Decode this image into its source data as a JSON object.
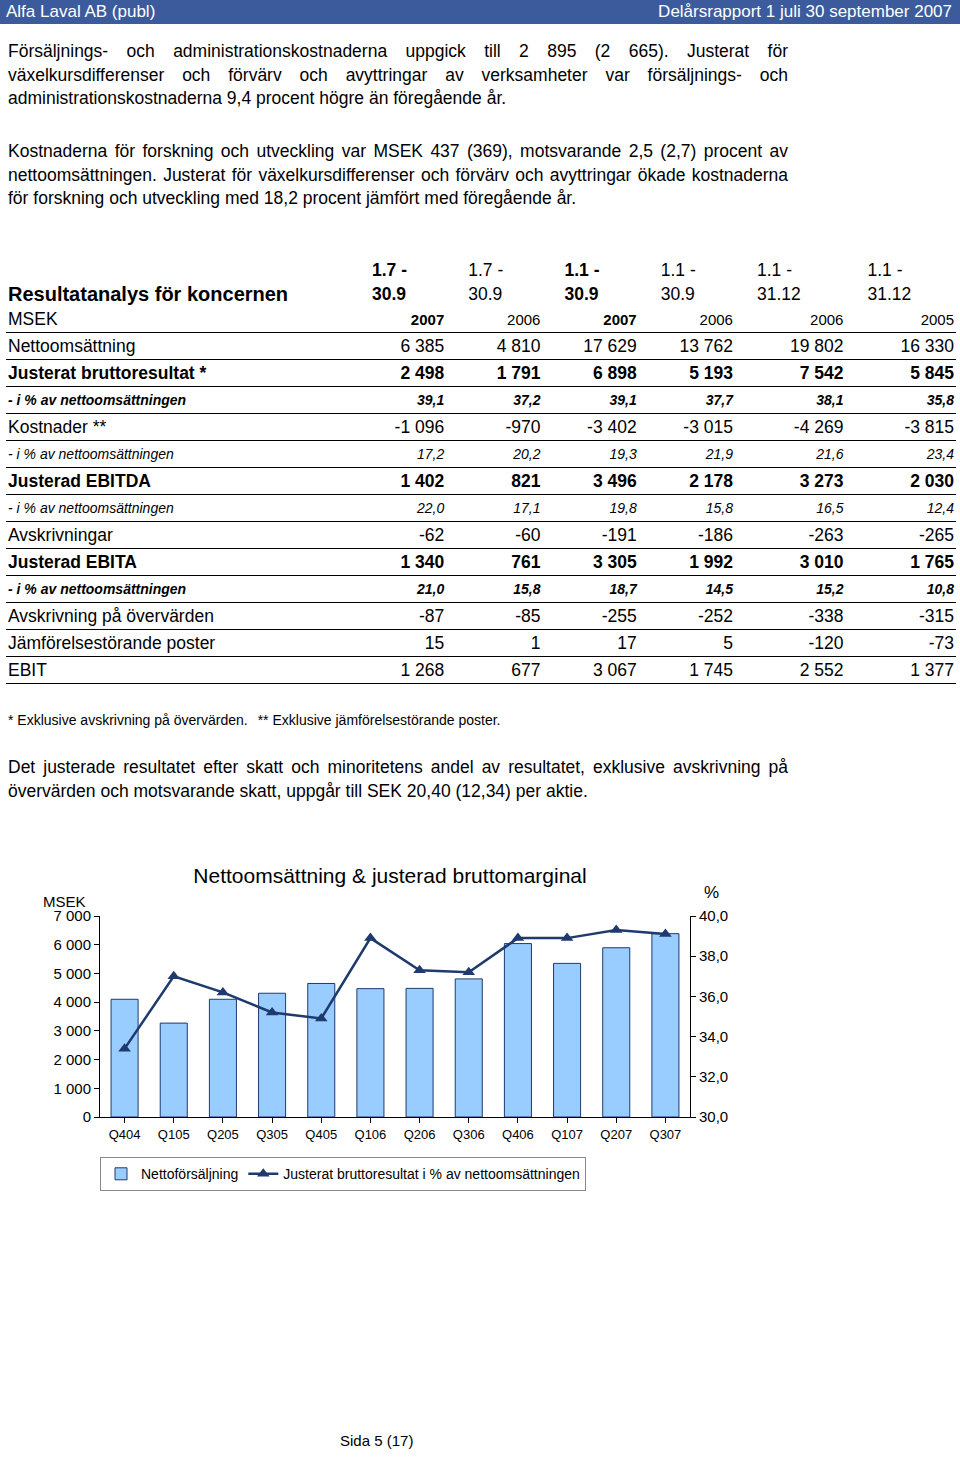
{
  "header": {
    "left": "Alfa Laval AB (publ)",
    "right": "Delårsrapport 1 juli 30 september 2007"
  },
  "paragraphs": [
    "Försäljnings- och administrationskostnaderna uppgick till 2 895 (2 665). Justerat för växelkursdifferenser och förvärv och avyttringar av verksamheter var försäljnings- och administrationskostnaderna 9,4 procent högre än föregående år.",
    "Kostnaderna för forskning och utveckling var MSEK 437 (369), motsvarande 2,5 (2,7) procent av nettoomsättningen. Justerat för växelkursdifferenser och förvärv och avyttringar ökade kostnaderna för forskning och utveckling med 18,2 procent jämfört med föregående år."
  ],
  "table": {
    "title": "Resultatanalys för koncernen",
    "unit": "MSEK",
    "columns": [
      {
        "period": [
          "1.7 -",
          "30.9"
        ],
        "year": "2007"
      },
      {
        "period": [
          "1.7 -",
          "30.9"
        ],
        "year": "2006"
      },
      {
        "period": [
          "1.1 -",
          "30.9"
        ],
        "year": "2007"
      },
      {
        "period": [
          "1.1 -",
          "30.9"
        ],
        "year": "2006"
      },
      {
        "period": [
          "1.1 -",
          "31.12"
        ],
        "year": "2006"
      },
      {
        "period": [
          "1.1 -",
          "31.12"
        ],
        "year": "2005"
      }
    ],
    "rows": [
      {
        "label": "Nettoomsättning",
        "values": [
          "6 385",
          "4 810",
          "17 629",
          "13 762",
          "19 802",
          "16 330"
        ]
      },
      {
        "label": "Justerat bruttoresultat *",
        "values": [
          "2 498",
          "1 791",
          "6 898",
          "5 193",
          "7 542",
          "5 845"
        ]
      },
      {
        "label": "- i % av nettoomsättningen",
        "values": [
          "39,1",
          "37,2",
          "39,1",
          "37,7",
          "38,1",
          "35,8"
        ]
      },
      {
        "label": "Kostnader **",
        "values": [
          "-1 096",
          "-970",
          "-3 402",
          "-3 015",
          "-4 269",
          "-3 815"
        ]
      },
      {
        "label": "- i % av nettoomsättningen",
        "values": [
          "17,2",
          "20,2",
          "19,3",
          "21,9",
          "21,6",
          "23,4"
        ]
      },
      {
        "label": "Justerad EBITDA",
        "values": [
          "1 402",
          "821",
          "3 496",
          "2 178",
          "3 273",
          "2 030"
        ]
      },
      {
        "label": "- i % av nettoomsättningen",
        "values": [
          "22,0",
          "17,1",
          "19,8",
          "15,8",
          "16,5",
          "12,4"
        ]
      },
      {
        "label": "Avskrivningar",
        "values": [
          "-62",
          "-60",
          "-191",
          "-186",
          "-263",
          "-265"
        ]
      },
      {
        "label": "Justerad EBITA",
        "values": [
          "1 340",
          "761",
          "3 305",
          "1 992",
          "3 010",
          "1 765"
        ]
      },
      {
        "label": "- i % av nettoomsättningen",
        "values": [
          "21,0",
          "15,8",
          "18,7",
          "14,5",
          "15,2",
          "10,8"
        ]
      },
      {
        "label": "Avskrivning på övervärden",
        "values": [
          "-87",
          "-85",
          "-255",
          "-252",
          "-338",
          "-315"
        ]
      },
      {
        "label": "Jämförelsestörande poster",
        "values": [
          "15",
          "1",
          "17",
          "5",
          "-120",
          "-73"
        ]
      },
      {
        "label": "EBIT",
        "values": [
          "1 268",
          "677",
          "3 067",
          "1 745",
          "2 552",
          "1 377"
        ]
      }
    ]
  },
  "footnotes": [
    "* Exklusive avskrivning på övervärden.",
    "** Exklusive jämförelsestörande poster."
  ],
  "paragraph_after": "Det justerade resultatet efter skatt och minoritetens andel av resultatet, exklusive avskrivning på övervärden och motsvarande skatt, uppgår till SEK 20,40 (12,34) per aktie.",
  "chart_data": {
    "type": "bar",
    "title": "Nettoomsättning & justerad bruttomarginal",
    "y_label": "MSEK",
    "y2_label": "%",
    "categories": [
      "Q404",
      "Q105",
      "Q205",
      "Q305",
      "Q405",
      "Q106",
      "Q206",
      "Q306",
      "Q406",
      "Q107",
      "Q207",
      "Q307"
    ],
    "series": [
      {
        "name": "Nettoförsäljning",
        "type": "bar",
        "color": "#99ccff",
        "values": [
          4100,
          3270,
          4100,
          4310,
          4650,
          4470,
          4480,
          4810,
          6040,
          5350,
          5894,
          6385
        ]
      },
      {
        "name": "Justerat bruttoresultat i % av nettoomsättningen",
        "type": "line",
        "axis": "y2",
        "color": "#1f3a6e",
        "marker": "triangle",
        "values": [
          33.4,
          37.0,
          36.2,
          35.2,
          34.9,
          38.9,
          37.3,
          37.2,
          38.9,
          38.9,
          39.3,
          39.1
        ]
      }
    ],
    "ylim": [
      0,
      7000
    ],
    "yticks": [
      0,
      {
        "value": 1000,
        "label": "1 000"
      },
      {
        "value": 2000,
        "label": "2 000"
      },
      {
        "value": 3000,
        "label": "3 000"
      },
      {
        "value": 4000,
        "label": "4 000"
      },
      {
        "value": 5000,
        "label": "5 000"
      },
      {
        "value": 6000,
        "label": "6 000"
      },
      {
        "value": 7000,
        "label": "7 000"
      }
    ],
    "y2lim": [
      30,
      40
    ],
    "y2ticks": [
      {
        "value": 30,
        "label": "30,0"
      },
      {
        "value": 32,
        "label": "32,0"
      },
      {
        "value": 34,
        "label": "34,0"
      },
      {
        "value": 36,
        "label": "36,0"
      },
      {
        "value": 38,
        "label": "38,0"
      },
      {
        "value": 40,
        "label": "40,0"
      }
    ],
    "grid": false,
    "legend": "bottom"
  },
  "footer": "Sida 5 (17)"
}
